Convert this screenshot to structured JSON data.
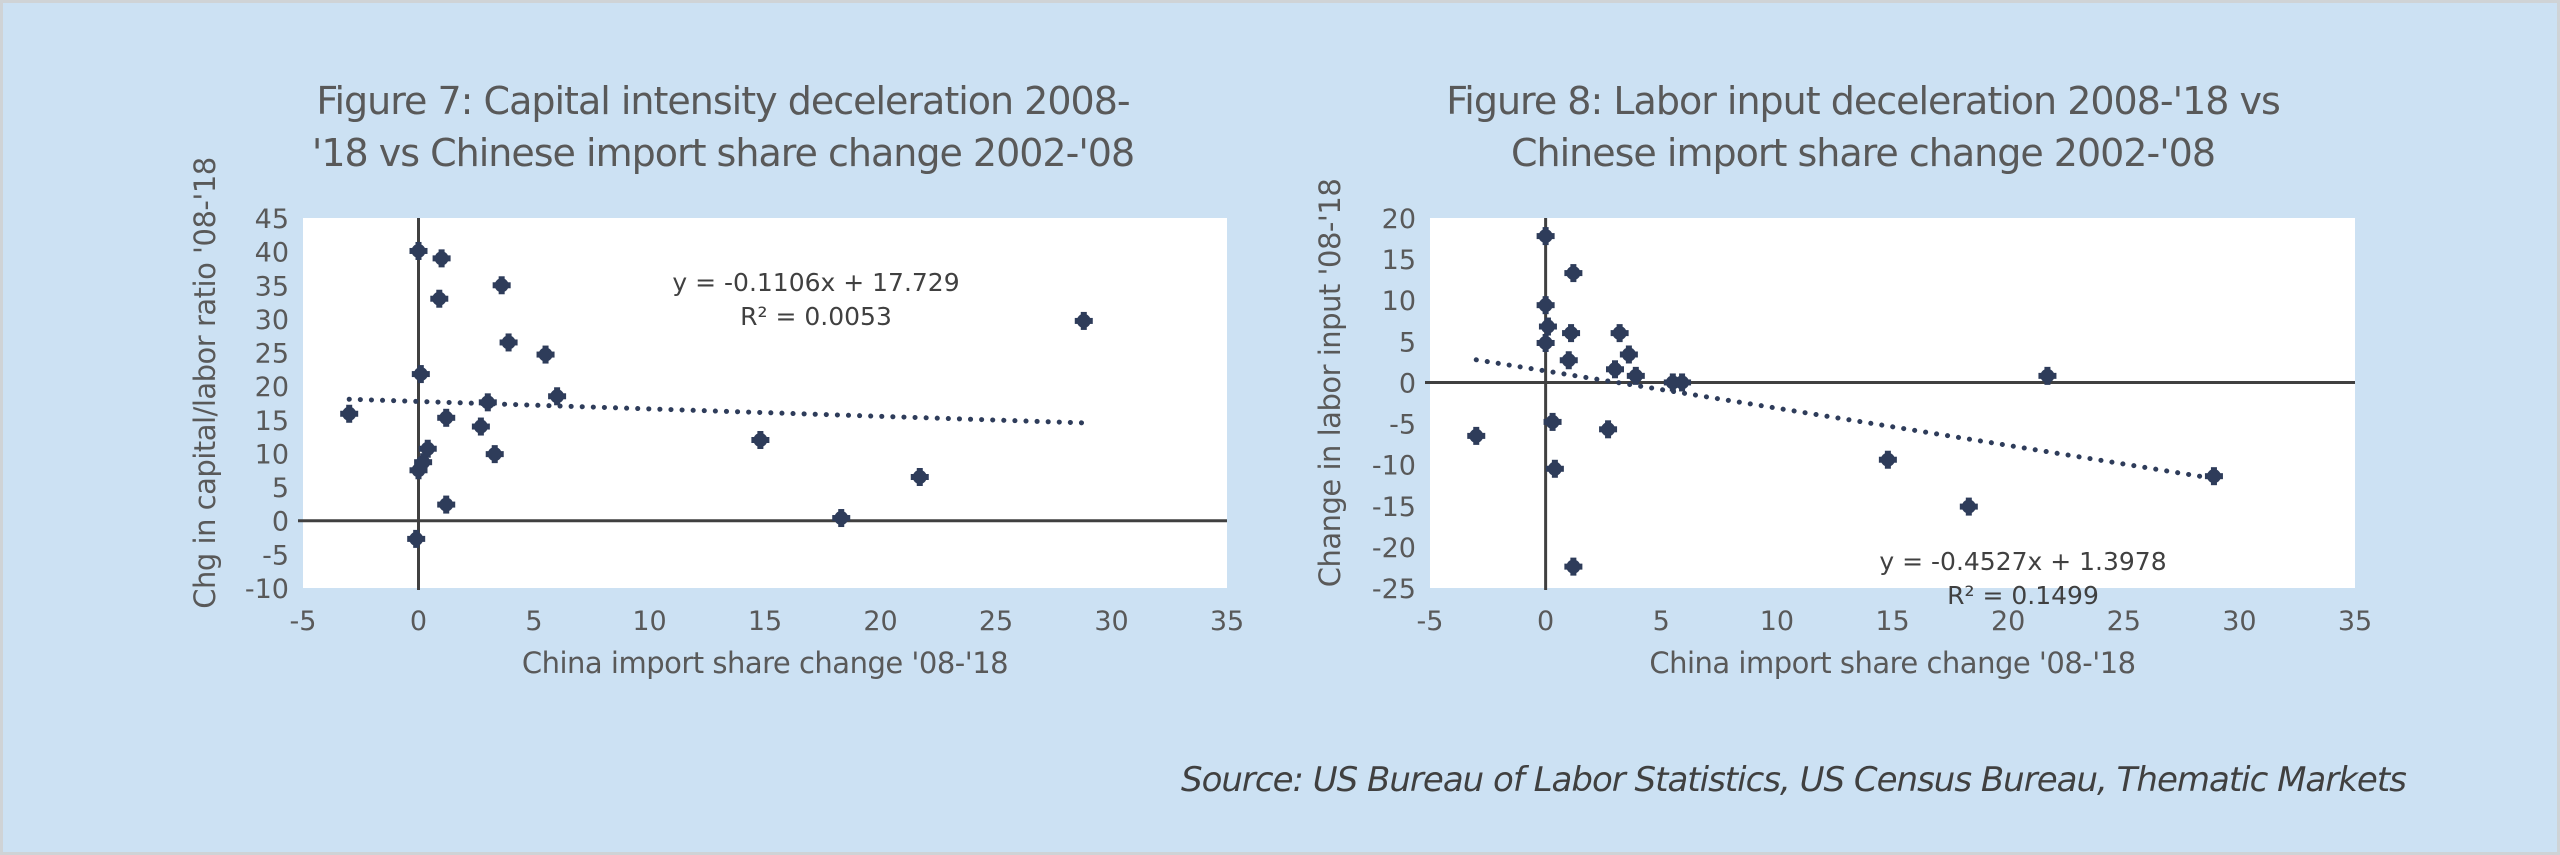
{
  "page": {
    "source": "Source: US Bureau of Labor Statistics, US Census Bureau, Thematic Markets",
    "background_color": "#cce1f3",
    "marker_color": "#2e3c5a"
  },
  "chart_data": [
    {
      "type": "scatter",
      "title_line1": "Figure 7: Capital intensity deceleration 2008-",
      "title_line2": "'18 vs Chinese import share change 2002-'08",
      "xlabel": "China import share change '08-'18",
      "ylabel": "Chg in capital/labor ratio '08-'18",
      "xlim": [
        -5,
        35
      ],
      "ylim": [
        -10,
        45
      ],
      "xticks": [
        "-5",
        "0",
        "5",
        "10",
        "15",
        "20",
        "25",
        "30",
        "35"
      ],
      "yticks": [
        "45",
        "40",
        "35",
        "30",
        "25",
        "20",
        "15",
        "10",
        "5",
        "0",
        "-5",
        "-10"
      ],
      "grid": false,
      "points": [
        {
          "x": -3.0,
          "y": 15.9
        },
        {
          "x": 0.0,
          "y": 40.1
        },
        {
          "x": 1.0,
          "y": 39.0
        },
        {
          "x": 0.9,
          "y": 33.0
        },
        {
          "x": 3.6,
          "y": 35.0
        },
        {
          "x": 3.9,
          "y": 26.5
        },
        {
          "x": 5.5,
          "y": 24.7
        },
        {
          "x": 0.1,
          "y": 21.8
        },
        {
          "x": 6.0,
          "y": 18.5
        },
        {
          "x": 3.0,
          "y": 17.6
        },
        {
          "x": 1.2,
          "y": 15.3
        },
        {
          "x": 2.7,
          "y": 14.0
        },
        {
          "x": 0.4,
          "y": 10.7
        },
        {
          "x": 0.2,
          "y": 8.7
        },
        {
          "x": 0.0,
          "y": 7.5
        },
        {
          "x": 3.3,
          "y": 9.9
        },
        {
          "x": 1.2,
          "y": 2.4
        },
        {
          "x": -0.1,
          "y": -2.7
        },
        {
          "x": 14.8,
          "y": 12.0
        },
        {
          "x": 28.8,
          "y": 29.7
        },
        {
          "x": 21.7,
          "y": 6.5
        },
        {
          "x": 18.3,
          "y": 0.4
        }
      ],
      "trendline": {
        "slope": -0.1106,
        "intercept": 17.729,
        "x_range": [
          -3.0,
          28.8
        ],
        "style": "dotted"
      },
      "equation": "y = -0.1106x + 17.729",
      "r_squared": "R² = 0.0053",
      "annotation_position": "top-center"
    },
    {
      "type": "scatter",
      "title_line1": "Figure 8: Labor input deceleration 2008-'18 vs",
      "title_line2": "Chinese import share change 2002-'08",
      "xlabel": "China import share change '08-'18",
      "ylabel": "Change in labor input '08-'18",
      "xlim": [
        -5,
        35
      ],
      "ylim": [
        -25,
        20
      ],
      "xticks": [
        "-5",
        "0",
        "5",
        "10",
        "15",
        "20",
        "25",
        "30",
        "35"
      ],
      "yticks": [
        "20",
        "15",
        "10",
        "5",
        "0",
        "-5",
        "-10",
        "-15",
        "-20",
        "-25"
      ],
      "grid": false,
      "points": [
        {
          "x": 0.0,
          "y": 17.8
        },
        {
          "x": 1.2,
          "y": 13.3
        },
        {
          "x": 0.0,
          "y": 9.4
        },
        {
          "x": 0.1,
          "y": 6.8
        },
        {
          "x": 1.1,
          "y": 6.0
        },
        {
          "x": 0.0,
          "y": 4.8
        },
        {
          "x": 1.0,
          "y": 2.7
        },
        {
          "x": 3.2,
          "y": 6.0
        },
        {
          "x": 3.6,
          "y": 3.4
        },
        {
          "x": 3.0,
          "y": 1.6
        },
        {
          "x": 3.9,
          "y": 0.8
        },
        {
          "x": 5.5,
          "y": 0.0
        },
        {
          "x": 5.9,
          "y": 0.0
        },
        {
          "x": -3.0,
          "y": -6.5
        },
        {
          "x": 0.3,
          "y": -4.8
        },
        {
          "x": 0.4,
          "y": -10.5
        },
        {
          "x": 2.7,
          "y": -5.7
        },
        {
          "x": 1.2,
          "y": -22.4
        },
        {
          "x": 14.8,
          "y": -9.4
        },
        {
          "x": 18.3,
          "y": -15.1
        },
        {
          "x": 21.7,
          "y": 0.8
        },
        {
          "x": 28.9,
          "y": -11.4
        }
      ],
      "trendline": {
        "slope": -0.4527,
        "intercept": 1.3978,
        "x_range": [
          -3.0,
          28.9
        ],
        "style": "dotted"
      },
      "equation": "y = -0.4527x + 1.3978",
      "r_squared": "R² = 0.1499",
      "annotation_position": "bottom-right"
    }
  ]
}
